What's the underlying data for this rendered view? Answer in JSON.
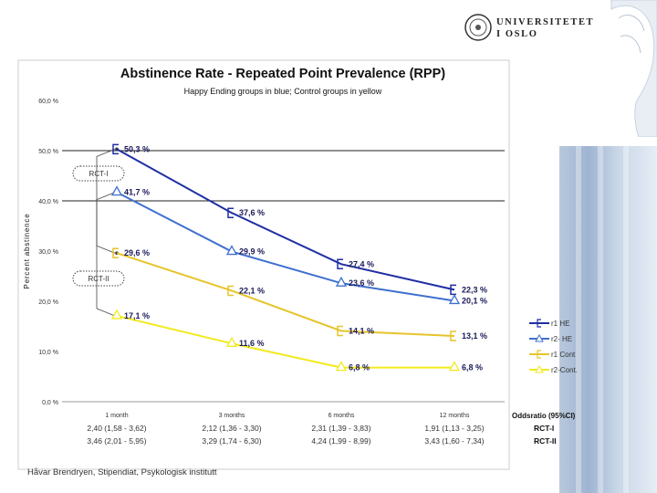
{
  "header": {
    "logo_line1": "UNIVERSITETET",
    "logo_line2": "I OSLO"
  },
  "footer": {
    "author": "Håvar Brendryen, Stipendiat, Psykologisk institutt"
  },
  "chart_data": {
    "type": "line",
    "title": "Abstinence Rate - Repeated Point Prevalence (RPP)",
    "subtitle": "Happy Ending groups in blue; Control groups in yellow",
    "ylabel": "Percent abstinence",
    "xlabel": "",
    "ylim": [
      0,
      60
    ],
    "yticks": [
      "0,0 %",
      "10,0 %",
      "20,0 %",
      "30,0 %",
      "40,0 %",
      "50,0 %",
      "60,0 %"
    ],
    "ytick_values": [
      0,
      10,
      20,
      30,
      40,
      50,
      60
    ],
    "categories": [
      "1 month",
      "3 months",
      "6 months",
      "12 months"
    ],
    "gridlines": [
      40,
      50
    ],
    "series": [
      {
        "name": "r1 HE",
        "color": "#1f2fa3",
        "marker": "square",
        "values": [
          50.3,
          37.6,
          27.4,
          22.3
        ],
        "labels": [
          "50,3 %",
          "37,6 %",
          "27,4 %",
          "22,3 %"
        ]
      },
      {
        "name": "r2- HE",
        "color": "#3f6fcf",
        "marker": "triangle",
        "values": [
          41.7,
          29.9,
          23.6,
          20.1
        ],
        "labels": [
          "41,7 %",
          "29,9 %",
          "23,6 %",
          "20,1 %"
        ]
      },
      {
        "name": "r1 Cont",
        "color": "#e6c42a",
        "marker": "square",
        "values": [
          29.6,
          22.1,
          14.1,
          13.1
        ],
        "labels": [
          "29,6 %",
          "22,1 %",
          "14,1 %",
          "13,1 %"
        ]
      },
      {
        "name": "r2-Cont.",
        "color": "#f2ea1c",
        "marker": "triangle",
        "values": [
          17.1,
          11.6,
          6.8,
          6.8
        ],
        "labels": [
          "17,1 %",
          "11,6 %",
          "6,8 %",
          "6,8 %"
        ]
      }
    ],
    "annotations": [
      {
        "text": "RCT-I",
        "targets": [
          50.3,
          29.6
        ]
      },
      {
        "text": "RCT-II",
        "targets": [
          41.7,
          17.1
        ]
      }
    ],
    "odds_ratio_header": "Oddsratio (95%CI)",
    "odds_ratio_rows": [
      {
        "label": "RCT-I",
        "values": [
          "2,40 (1,58 - 3,62)",
          "2,12 (1,36 - 3,30)",
          "2,31 (1,39 - 3,83)",
          "1,91 (1,13 - 3,25)"
        ]
      },
      {
        "label": "RCT-II",
        "values": [
          "3,46 (2,01 - 5,95)",
          "3,29 (1,74 - 6,30)",
          "4,24 (1,99 - 8,99)",
          "3,43 (1,60 - 7,34)"
        ]
      }
    ]
  }
}
